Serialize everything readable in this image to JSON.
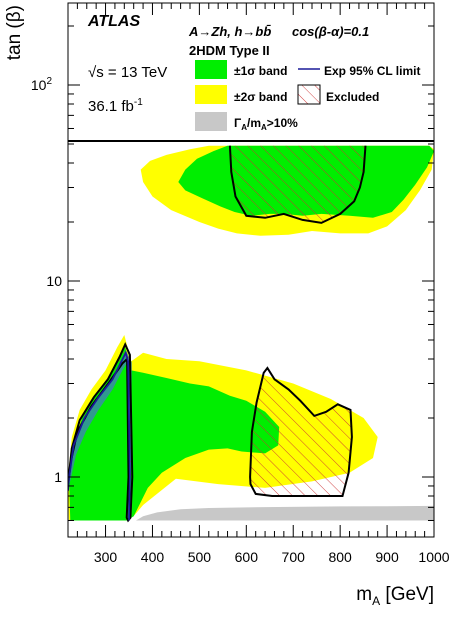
{
  "chart_data": {
    "type": "contour",
    "experiment": "ATLAS",
    "process_text": "A→Zh, h→bb̄",
    "cos_text": "cos(β-α)=0.1",
    "model_text": "2HDM Type II",
    "energy_text": "√s = 13 TeV",
    "lumi_text": "36.1 fb",
    "lumi_exp": "-1",
    "xlabel": "m",
    "xlabel_sub": "A",
    "xlabel_unit": " [GeV]",
    "ylabel": "tan (β)",
    "x_scale": "linear",
    "y_scale": "log",
    "xlim": [
      220,
      1000
    ],
    "ylim": [
      0.6,
      250
    ],
    "x_ticks": [
      300,
      400,
      500,
      600,
      700,
      800,
      900,
      1000
    ],
    "y_ticks": [
      {
        "value": 1,
        "label": "1"
      },
      {
        "value": 10,
        "label": "10"
      },
      {
        "value": 100,
        "label": "10",
        "exp": "2"
      }
    ],
    "legend": [
      {
        "key": "band1",
        "label": "±1σ band",
        "color": "#00ee00"
      },
      {
        "key": "exp",
        "label": "Exp 95% CL limit",
        "color": "#1a1a99"
      },
      {
        "key": "band2",
        "label": "±2σ band",
        "color": "#ffff00"
      },
      {
        "key": "excl",
        "label": "Excluded",
        "color": "#cc3333"
      },
      {
        "key": "width",
        "label": "Γ",
        "label_sub": "A",
        "label_tail": "/m",
        "label_sub2": "A",
        "label_end": ">10%",
        "color": "#c8c8c8"
      }
    ],
    "colors": {
      "band1": "#00ee00",
      "band2": "#ffff00",
      "width": "#c8c8c8",
      "obs": "#000000",
      "exp": "#1a1a99",
      "hatch": "#cc3333"
    },
    "regions": {
      "lower_yellow": [
        [
          220,
          1.0
        ],
        [
          228,
          1.6
        ],
        [
          245,
          2.2
        ],
        [
          270,
          2.8
        ],
        [
          300,
          3.5
        ],
        [
          325,
          4.6
        ],
        [
          340,
          5.3
        ],
        [
          355,
          3.9
        ],
        [
          380,
          4.3
        ],
        [
          430,
          4.0
        ],
        [
          500,
          3.9
        ],
        [
          600,
          3.5
        ],
        [
          700,
          3.0
        ],
        [
          780,
          2.5
        ],
        [
          850,
          2.0
        ],
        [
          880,
          1.6
        ],
        [
          870,
          1.25
        ],
        [
          820,
          1.05
        ],
        [
          740,
          0.95
        ],
        [
          640,
          0.88
        ],
        [
          540,
          0.92
        ],
        [
          450,
          0.98
        ],
        [
          380,
          0.72
        ],
        [
          362,
          0.64
        ],
        [
          345,
          0.6
        ],
        [
          222,
          0.6
        ]
      ],
      "lower_green": [
        [
          222,
          1.0
        ],
        [
          232,
          1.5
        ],
        [
          250,
          2.0
        ],
        [
          275,
          2.6
        ],
        [
          305,
          3.2
        ],
        [
          330,
          4.1
        ],
        [
          342,
          4.6
        ],
        [
          355,
          3.5
        ],
        [
          380,
          3.4
        ],
        [
          430,
          3.2
        ],
        [
          480,
          3.0
        ],
        [
          520,
          2.9
        ],
        [
          565,
          2.6
        ],
        [
          600,
          2.45
        ],
        [
          640,
          2.15
        ],
        [
          670,
          1.8
        ],
        [
          668,
          1.45
        ],
        [
          640,
          1.32
        ],
        [
          590,
          1.35
        ],
        [
          560,
          1.4
        ],
        [
          520,
          1.38
        ],
        [
          470,
          1.25
        ],
        [
          420,
          1.05
        ],
        [
          390,
          0.88
        ],
        [
          372,
          0.72
        ],
        [
          360,
          0.63
        ],
        [
          345,
          0.6
        ],
        [
          225,
          0.6
        ]
      ],
      "lower_blue_band": [
        [
          222,
          0.9
        ],
        [
          232,
          1.4
        ],
        [
          255,
          2.0
        ],
        [
          285,
          2.6
        ],
        [
          315,
          3.2
        ],
        [
          335,
          4.0
        ],
        [
          344,
          4.4
        ],
        [
          356,
          3.85
        ],
        [
          354,
          1.0
        ],
        [
          350,
          0.62
        ],
        [
          345,
          0.62
        ],
        [
          347,
          1.0
        ],
        [
          345,
          3.8
        ],
        [
          336,
          3.5
        ],
        [
          315,
          2.8
        ],
        [
          285,
          2.2
        ],
        [
          258,
          1.7
        ],
        [
          237,
          1.3
        ],
        [
          226,
          0.98
        ]
      ],
      "upper_yellow": [
        [
          375,
          37
        ],
        [
          395,
          41
        ],
        [
          430,
          44
        ],
        [
          480,
          47
        ],
        [
          520,
          49
        ],
        [
          990,
          49
        ],
        [
          1000,
          47
        ],
        [
          995,
          37
        ],
        [
          970,
          29
        ],
        [
          940,
          23
        ],
        [
          900,
          19
        ],
        [
          860,
          17.5
        ],
        [
          800,
          17.5
        ],
        [
          740,
          18
        ],
        [
          690,
          17.2
        ],
        [
          630,
          17
        ],
        [
          580,
          17.5
        ],
        [
          540,
          18.5
        ],
        [
          500,
          20
        ],
        [
          440,
          23
        ],
        [
          400,
          27
        ],
        [
          380,
          32
        ]
      ],
      "upper_green": [
        [
          455,
          32
        ],
        [
          470,
          37
        ],
        [
          495,
          42
        ],
        [
          530,
          46
        ],
        [
          560,
          49
        ],
        [
          990,
          49
        ],
        [
          1000,
          46
        ],
        [
          985,
          38
        ],
        [
          960,
          31
        ],
        [
          935,
          26
        ],
        [
          910,
          22.5
        ],
        [
          870,
          21
        ],
        [
          820,
          21.5
        ],
        [
          760,
          22
        ],
        [
          720,
          21.5
        ],
        [
          680,
          22
        ],
        [
          650,
          22
        ],
        [
          610,
          21.5
        ],
        [
          575,
          22.5
        ],
        [
          545,
          24
        ],
        [
          505,
          26.5
        ],
        [
          470,
          29
        ]
      ],
      "width_gray": [
        [
          365,
          0.6
        ],
        [
          380,
          0.63
        ],
        [
          410,
          0.66
        ],
        [
          460,
          0.685
        ],
        [
          520,
          0.695
        ],
        [
          640,
          0.702
        ],
        [
          800,
          0.708
        ],
        [
          900,
          0.71
        ],
        [
          1000,
          0.712
        ],
        [
          1000,
          0.6
        ]
      ],
      "obs_lower_left": [
        [
          220,
          0.92
        ],
        [
          228,
          1.4
        ],
        [
          245,
          1.95
        ],
        [
          275,
          2.55
        ],
        [
          305,
          3.15
        ],
        [
          330,
          4.1
        ],
        [
          342,
          4.75
        ],
        [
          352,
          4.2
        ],
        [
          357,
          1.0
        ],
        [
          353,
          0.62
        ],
        [
          348,
          0.6
        ],
        [
          345,
          0.62
        ],
        [
          349,
          1.0
        ],
        [
          346,
          4.0
        ],
        [
          336,
          3.8
        ],
        [
          308,
          3.05
        ],
        [
          270,
          2.3
        ],
        [
          240,
          1.7
        ],
        [
          226,
          1.2
        ],
        [
          221,
          0.95
        ]
      ],
      "obs_lower_right": [
        [
          608,
          1.0
        ],
        [
          612,
          1.7
        ],
        [
          622,
          2.4
        ],
        [
          637,
          3.4
        ],
        [
          645,
          3.6
        ],
        [
          660,
          3.15
        ],
        [
          690,
          2.8
        ],
        [
          715,
          2.45
        ],
        [
          745,
          2.05
        ],
        [
          770,
          2.15
        ],
        [
          795,
          2.35
        ],
        [
          822,
          2.2
        ],
        [
          825,
          1.6
        ],
        [
          818,
          1.05
        ],
        [
          805,
          0.8
        ],
        [
          730,
          0.8
        ],
        [
          655,
          0.8
        ],
        [
          620,
          0.82
        ],
        [
          609,
          0.92
        ]
      ],
      "obs_upper": [
        [
          565,
          49
        ],
        [
          568,
          36
        ],
        [
          577,
          27
        ],
        [
          600,
          21.5
        ],
        [
          640,
          21
        ],
        [
          680,
          22
        ],
        [
          720,
          20.5
        ],
        [
          760,
          19.8
        ],
        [
          800,
          22
        ],
        [
          830,
          25.5
        ],
        [
          842,
          30
        ],
        [
          850,
          36
        ],
        [
          854,
          49
        ]
      ]
    }
  }
}
